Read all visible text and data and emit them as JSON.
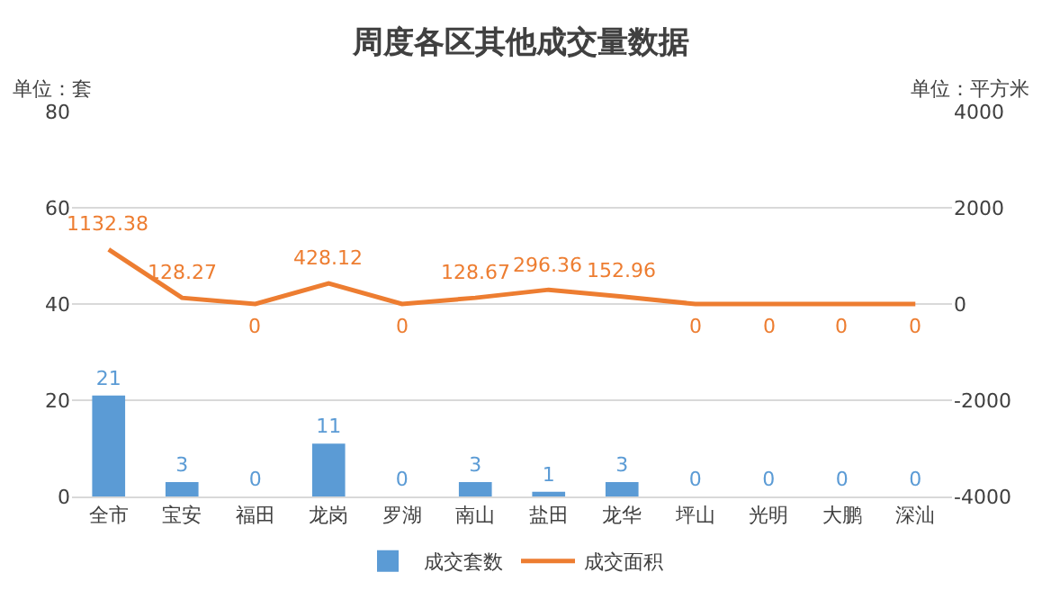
{
  "chart_data": {
    "type": "bar",
    "title": "周度各区其他成交量数据",
    "annotations": [
      "单位：套",
      "单位：平方米"
    ],
    "categories": [
      "全市",
      "宝安",
      "福田",
      "龙岗",
      "罗湖",
      "南山",
      "盐田",
      "龙华",
      "坪山",
      "光明",
      "大鹏",
      "深汕"
    ],
    "series": [
      {
        "name": "成交套数",
        "color": "#5b9bd5",
        "values": [
          21,
          3,
          0,
          11,
          0,
          3,
          1,
          3,
          0,
          0,
          0,
          0
        ]
      },
      {
        "name": "成交面积",
        "type": "line",
        "axis": "y2",
        "color": "#ed7d31",
        "marker": "none",
        "values": [
          1132.38,
          128.27,
          0,
          428.12,
          0,
          128.67,
          296.36,
          152.96,
          0,
          0,
          0,
          0
        ]
      }
    ],
    "ylim": [
      0,
      80
    ],
    "yticks": [
      0,
      20,
      40,
      60,
      80
    ],
    "y2lim": [
      -4000,
      4000
    ],
    "y2ticks": [
      -4000,
      -2000,
      0,
      2000,
      4000
    ],
    "grid": "y",
    "legend": "bottom",
    "data_labels": true
  }
}
